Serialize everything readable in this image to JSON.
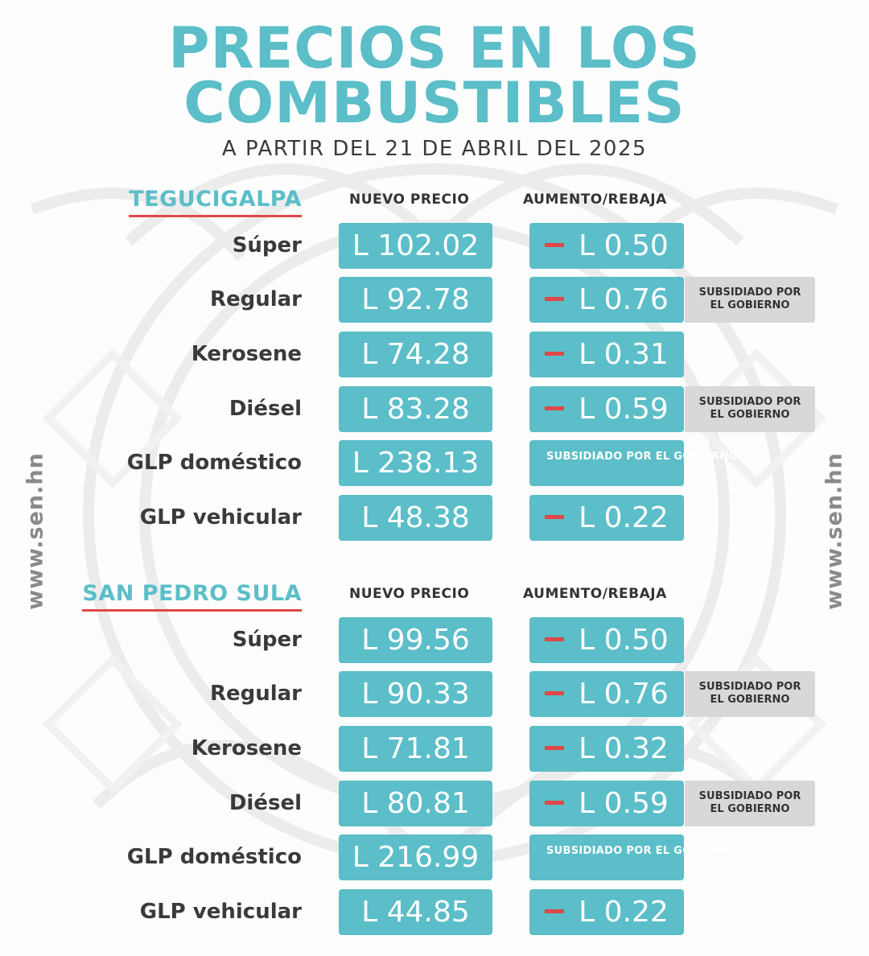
{
  "header": {
    "title_line1": "PRECIOS EN LOS",
    "title_line2": "COMBUSTIBLES",
    "subtitle": "A PARTIR DEL 21 DE ABRIL DEL 2025"
  },
  "columns": {
    "price": "NUEVO PRECIO",
    "change": "AUMENTO/REBAJA"
  },
  "subsidy_note_line1": "SUBSIDIADO",
  "subsidy_note_line2": "POR EL GOBIERNO",
  "website": "www.sen.hn",
  "colors": {
    "accent": "#5bbec8",
    "decrease": "#e04848",
    "note_bg": "#d8d8d8",
    "text": "#3a3a3a"
  },
  "sections": [
    {
      "city": "TEGUCIGALPA",
      "rows": [
        {
          "fuel": "Súper",
          "price": "L 102.02",
          "change": "L 0.50"
        },
        {
          "fuel": "Regular",
          "price": "L 92.78",
          "change": "L 0.76",
          "note": "SUBSIDIADO POR EL GOBIERNO"
        },
        {
          "fuel": "Kerosene",
          "price": "L 74.28",
          "change": "L 0.31"
        },
        {
          "fuel": "Diésel",
          "price": "L 83.28",
          "change": "L 0.59",
          "note": "SUBSIDIADO POR EL GOBIERNO"
        },
        {
          "fuel": "GLP doméstico",
          "price": "L 238.13",
          "change": "SUBSIDIADO POR EL GOBIERNO"
        },
        {
          "fuel": "GLP vehicular",
          "price": "L 48.38",
          "change": "L 0.22"
        }
      ]
    },
    {
      "city": "SAN PEDRO SULA",
      "rows": [
        {
          "fuel": "Súper",
          "price": "L 99.56",
          "change": "L 0.50"
        },
        {
          "fuel": "Regular",
          "price": "L 90.33",
          "change": "L 0.76",
          "note": "SUBSIDIADO POR EL GOBIERNO"
        },
        {
          "fuel": "Kerosene",
          "price": "L 71.81",
          "change": "L 0.32"
        },
        {
          "fuel": "Diésel",
          "price": "L 80.81",
          "change": "L 0.59",
          "note": "SUBSIDIADO POR EL GOBIERNO"
        },
        {
          "fuel": "GLP doméstico",
          "price": "L 216.99",
          "change": "SUBSIDIADO POR EL GOBIERNO"
        },
        {
          "fuel": "GLP vehicular",
          "price": "L 44.85",
          "change": "L 0.22"
        }
      ]
    }
  ]
}
